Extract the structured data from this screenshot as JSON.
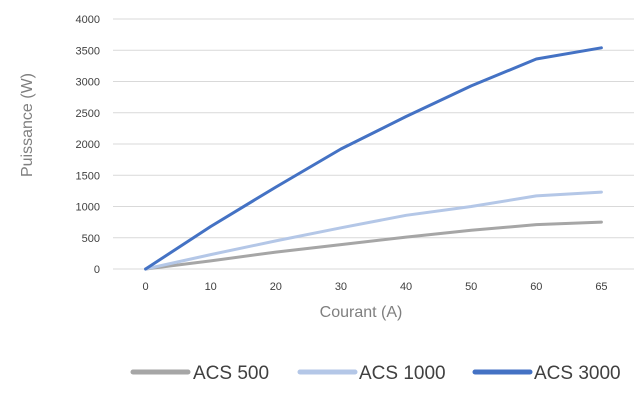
{
  "chart_data": {
    "type": "line",
    "xlabel": "Courant (A)",
    "ylabel": "Puissance (W)",
    "x": [
      0,
      10,
      20,
      30,
      40,
      50,
      60,
      65
    ],
    "x_tick_labels": [
      "0",
      "10",
      "20",
      "30",
      "40",
      "50",
      "60",
      "65"
    ],
    "x_axis_kind": "category",
    "ylim": [
      0,
      4000
    ],
    "y_ticks": [
      0,
      500,
      1000,
      1500,
      2000,
      2500,
      3000,
      3500,
      4000
    ],
    "y_tick_labels": [
      "0",
      "500",
      "1000",
      "1500",
      "2000",
      "2500",
      "3000",
      "3500",
      "4000"
    ],
    "grid": true,
    "legend_position": "bottom",
    "series": [
      {
        "name": "ACS 500",
        "color": "#a6a6a6",
        "values": [
          0,
          130,
          270,
          390,
          510,
          620,
          710,
          750
        ]
      },
      {
        "name": "ACS 1000",
        "color": "#b4c7e7",
        "values": [
          0,
          230,
          450,
          660,
          860,
          1000,
          1170,
          1230
        ]
      },
      {
        "name": "ACS 3000",
        "color": "#4472c4",
        "values": [
          0,
          680,
          1310,
          1920,
          2440,
          2930,
          3360,
          3540
        ]
      }
    ]
  }
}
